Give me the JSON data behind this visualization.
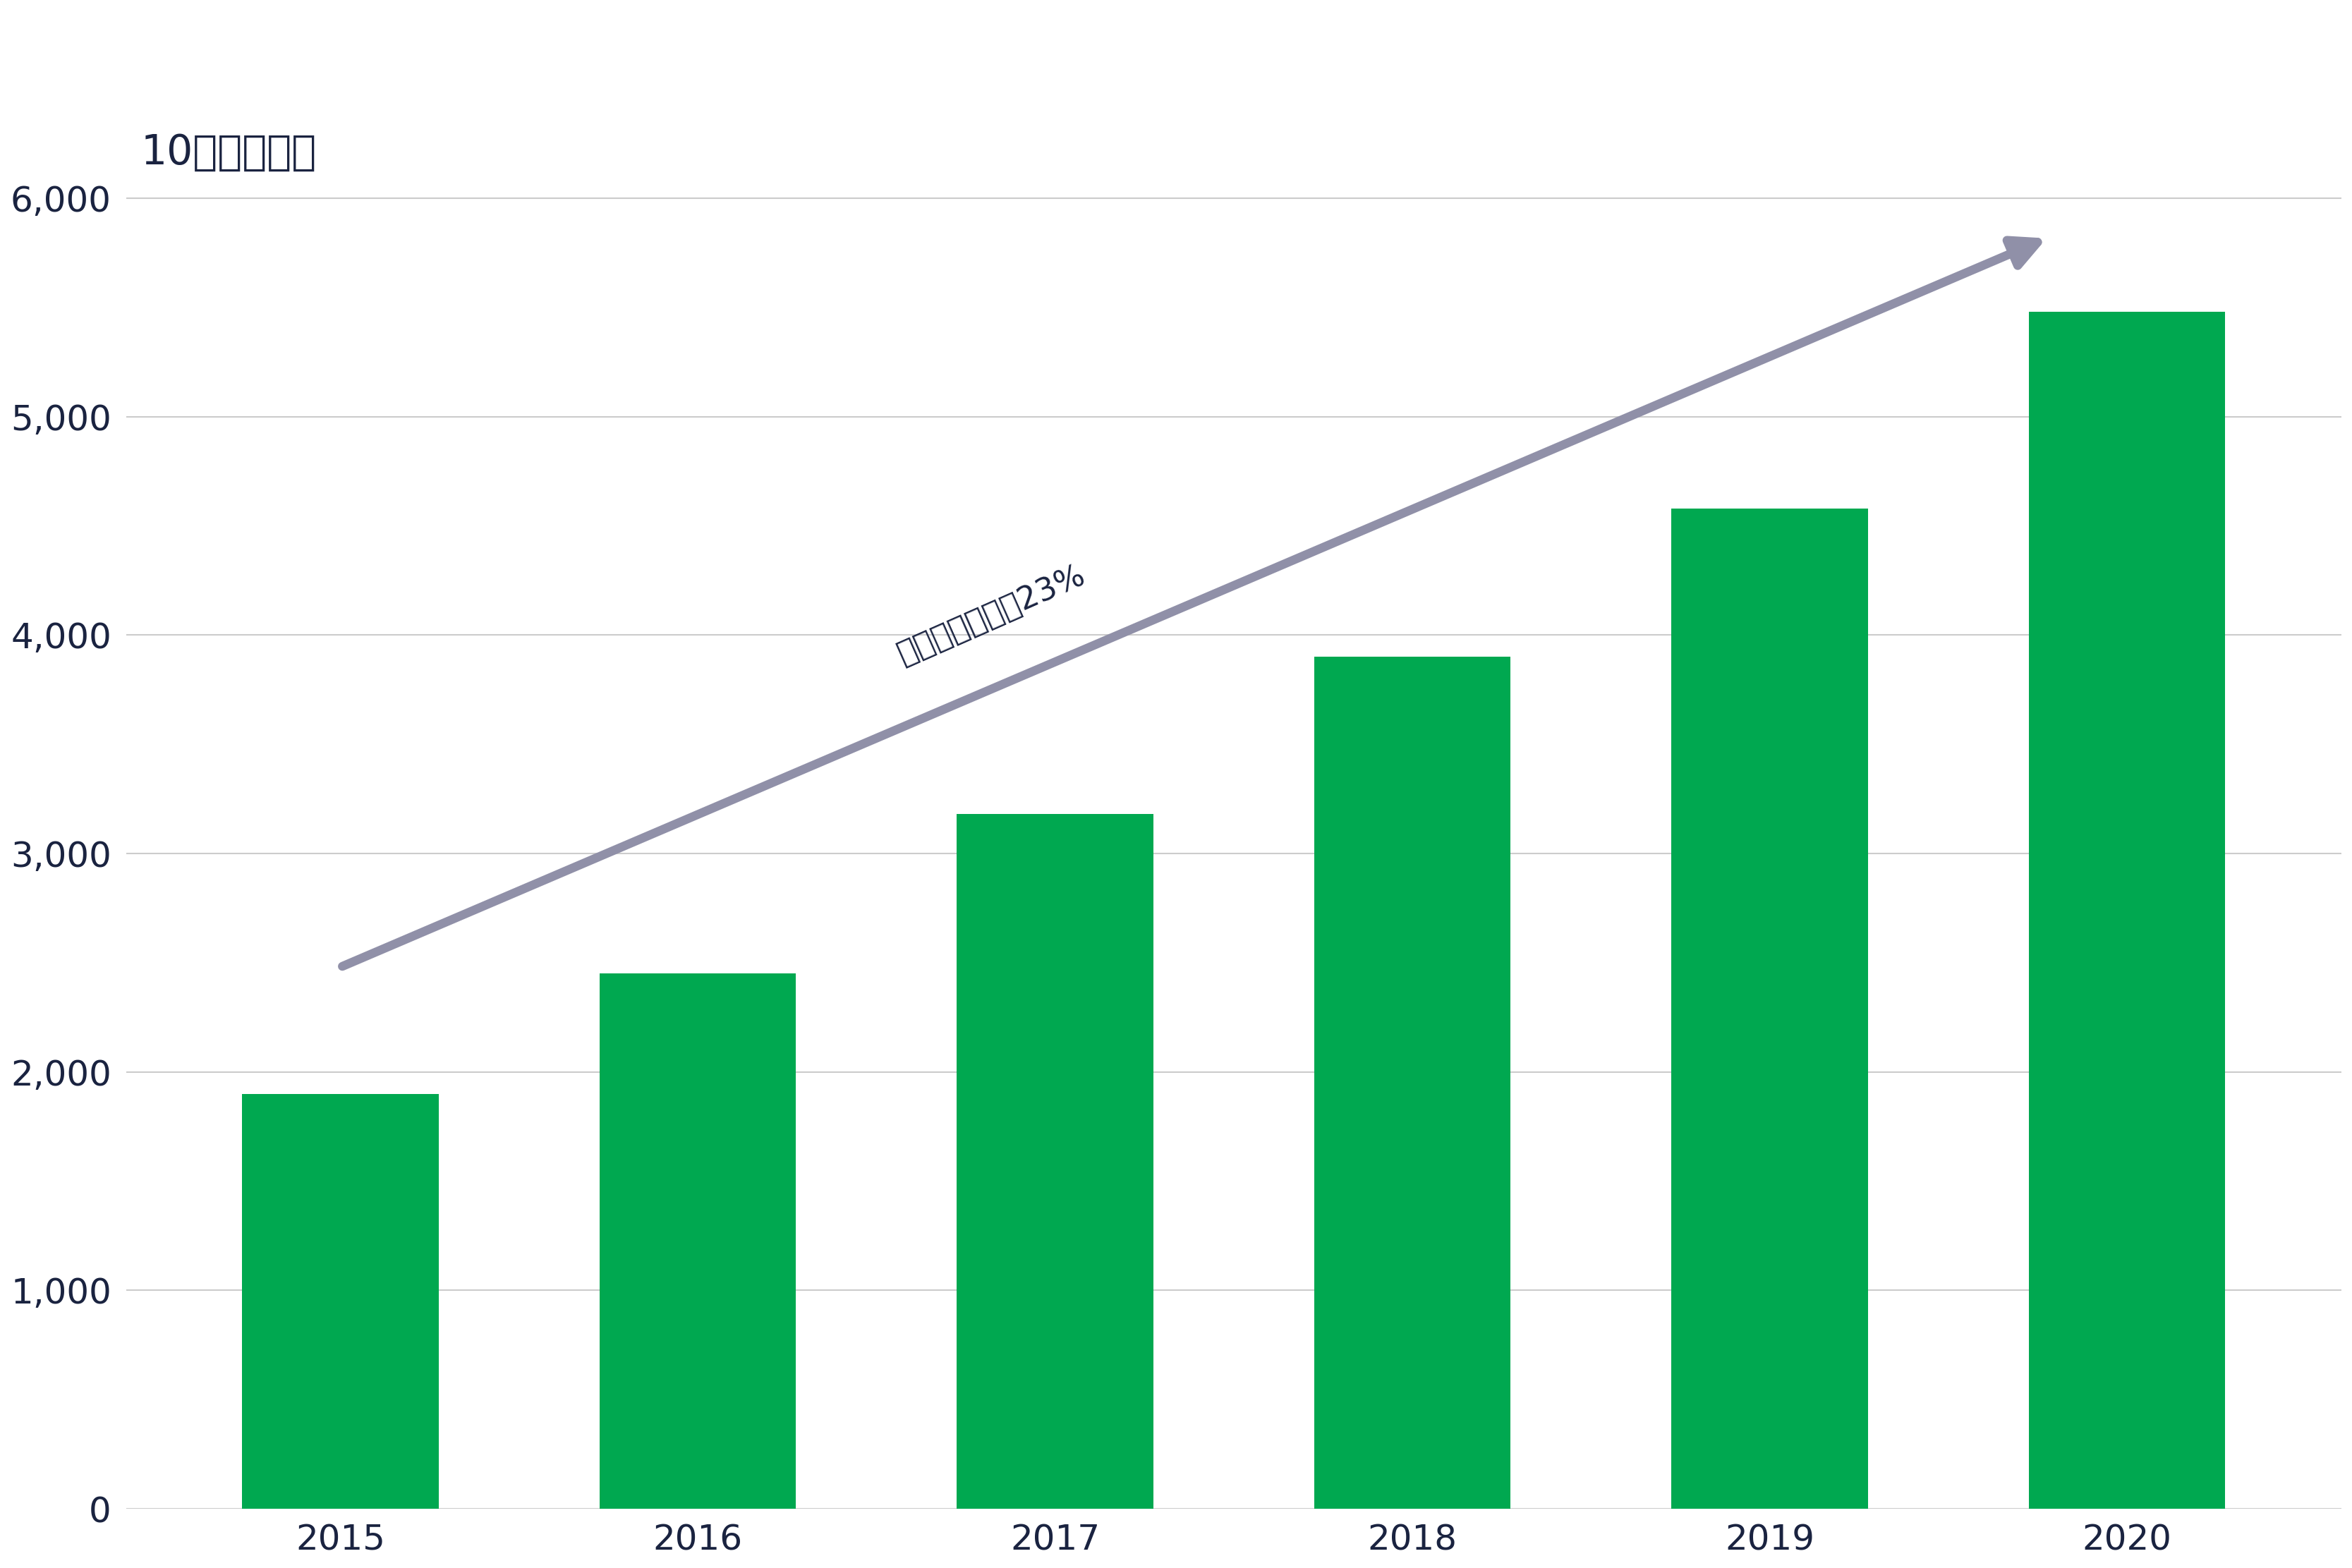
{
  "years": [
    "2015",
    "2016",
    "2017",
    "2018",
    "2019",
    "2020"
  ],
  "values": [
    1900,
    2450,
    3180,
    3900,
    4580,
    5480
  ],
  "bar_color": "#00A850",
  "ylabel": "10亿印度卢比",
  "yticks": [
    0,
    1000,
    2000,
    3000,
    4000,
    5000,
    6000
  ],
  "ylim": [
    0,
    6500
  ],
  "cagr_text": "复合年增长率：23%",
  "arrow_color": "#9090A8",
  "text_color": "#1a2340",
  "background_color": "#ffffff",
  "title_fontsize": 42,
  "tick_fontsize": 36,
  "cagr_fontsize": 32
}
